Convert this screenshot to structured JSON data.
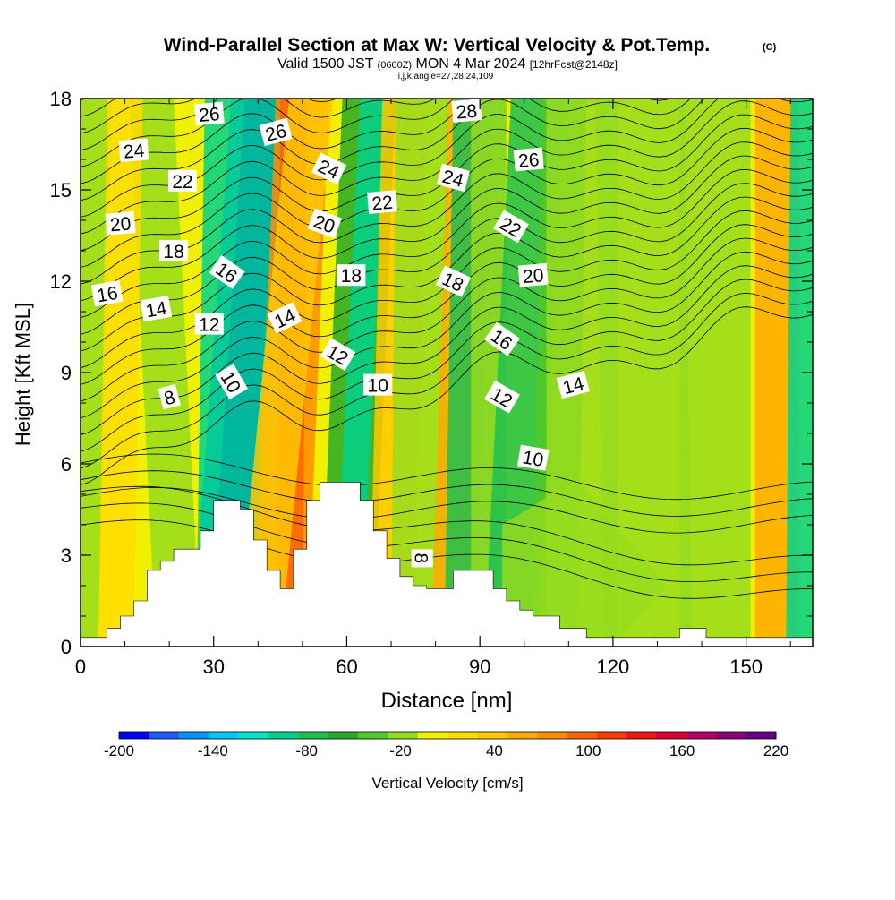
{
  "title": {
    "main": "Wind-Parallel Section at Max W: Vertical Velocity & Pot.Temp.",
    "copyright": "(C)",
    "valid_prefix": "Valid 1500 JST",
    "valid_utc": "(0600Z)",
    "valid_date": "MON 4 Mar 2024",
    "forecast": "[12hrFcst@2148z]",
    "indices": "i,j,k,angle=27,28,24,109"
  },
  "colors": {
    "background": "#ffffff",
    "contour": "#000000",
    "terrain": "#ffffff"
  },
  "chart_data": {
    "type": "heatmap",
    "xlabel": "Distance [nm]",
    "ylabel": "Height [Kft MSL]",
    "xlim": [
      0,
      165
    ],
    "ylim": [
      0,
      18
    ],
    "x_ticks": [
      0,
      30,
      60,
      90,
      120,
      150
    ],
    "y_ticks": [
      0,
      3,
      6,
      9,
      12,
      15,
      18
    ],
    "x_minor_step": 10,
    "colorbar": {
      "label": "Vertical Velocity [cm/s]",
      "min": -200,
      "max": 220,
      "tick_labels": [
        "-200",
        "-140",
        "-80",
        "-20",
        "40",
        "100",
        "160",
        "220"
      ],
      "colors": [
        "#0000ff",
        "#1e5aff",
        "#0096ff",
        "#00c8ff",
        "#00e6cc",
        "#00d28c",
        "#1ec050",
        "#28aa28",
        "#50c828",
        "#96dc1e",
        "#f0f000",
        "#ffdc00",
        "#ffc800",
        "#ffaa00",
        "#ff8c00",
        "#ff6400",
        "#ff3c00",
        "#f01414",
        "#dc0032",
        "#b40064",
        "#8c0078",
        "#64008c"
      ]
    },
    "terrain_profile": {
      "x": [
        0,
        6,
        6,
        9,
        9,
        12,
        12,
        15,
        15,
        18,
        18,
        21,
        21,
        24,
        24,
        27,
        27,
        30,
        30,
        33,
        33,
        36,
        36,
        39,
        39,
        42,
        42,
        45,
        45,
        48,
        48,
        51,
        51,
        54,
        54,
        57,
        57,
        60,
        60,
        63,
        63,
        66,
        66,
        69,
        69,
        72,
        72,
        75,
        75,
        78,
        78,
        81,
        81,
        84,
        84,
        87,
        87,
        90,
        90,
        93,
        93,
        96,
        96,
        99,
        99,
        102,
        102,
        105,
        105,
        108,
        108,
        111,
        111,
        114,
        114,
        117,
        117,
        120,
        120,
        135,
        135,
        141,
        141,
        165
      ],
      "y": [
        0.3,
        0.3,
        0.6,
        0.6,
        1.0,
        1.0,
        1.5,
        1.5,
        2.5,
        2.5,
        2.8,
        2.8,
        3.2,
        3.2,
        3.2,
        3.2,
        3.8,
        3.8,
        4.8,
        4.8,
        4.8,
        4.8,
        4.5,
        4.5,
        3.5,
        3.5,
        2.5,
        2.5,
        1.9,
        1.9,
        3.2,
        3.2,
        4.8,
        4.8,
        5.4,
        5.4,
        5.4,
        5.4,
        5.4,
        5.4,
        4.8,
        4.8,
        3.8,
        3.8,
        2.9,
        2.9,
        2.3,
        2.3,
        2.0,
        2.0,
        1.9,
        1.9,
        1.9,
        1.9,
        2.5,
        2.5,
        2.5,
        2.5,
        2.5,
        2.5,
        1.9,
        1.9,
        1.5,
        1.5,
        1.2,
        1.2,
        1.0,
        1.0,
        1.0,
        1.0,
        0.6,
        0.6,
        0.6,
        0.6,
        0.3,
        0.3,
        0.3,
        0.3,
        0.3,
        0.3,
        0.6,
        0.6,
        0.3,
        0.3
      ]
    },
    "contour_labels": [
      {
        "text": "26",
        "x": 29,
        "y": 17.5,
        "angle": -5
      },
      {
        "text": "24",
        "x": 12,
        "y": 16.3,
        "angle": -5
      },
      {
        "text": "22",
        "x": 23,
        "y": 15.3,
        "angle": 0
      },
      {
        "text": "20",
        "x": 9,
        "y": 13.9,
        "angle": -5
      },
      {
        "text": "18",
        "x": 21,
        "y": 13.0,
        "angle": 0
      },
      {
        "text": "16",
        "x": 6,
        "y": 11.6,
        "angle": -10
      },
      {
        "text": "14",
        "x": 17,
        "y": 11.1,
        "angle": -10
      },
      {
        "text": "12",
        "x": 29,
        "y": 10.6,
        "angle": 0
      },
      {
        "text": "16",
        "x": 33,
        "y": 12.3,
        "angle": 35
      },
      {
        "text": "10",
        "x": 34,
        "y": 8.7,
        "angle": 60
      },
      {
        "text": "8",
        "x": 20,
        "y": 8.2,
        "angle": -15
      },
      {
        "text": "26",
        "x": 44,
        "y": 16.9,
        "angle": -15
      },
      {
        "text": "24",
        "x": 56,
        "y": 15.7,
        "angle": 25
      },
      {
        "text": "20",
        "x": 55,
        "y": 13.9,
        "angle": 20
      },
      {
        "text": "14",
        "x": 46,
        "y": 10.8,
        "angle": -25
      },
      {
        "text": "18",
        "x": 61,
        "y": 12.2,
        "angle": 0
      },
      {
        "text": "12",
        "x": 58,
        "y": 9.6,
        "angle": 30
      },
      {
        "text": "22",
        "x": 68,
        "y": 14.6,
        "angle": -5
      },
      {
        "text": "10",
        "x": 67,
        "y": 8.6,
        "angle": 0
      },
      {
        "text": "24",
        "x": 84,
        "y": 15.4,
        "angle": 15
      },
      {
        "text": "28",
        "x": 87,
        "y": 17.6,
        "angle": -5
      },
      {
        "text": "18",
        "x": 84,
        "y": 12.0,
        "angle": 25
      },
      {
        "text": "26",
        "x": 101,
        "y": 16.0,
        "angle": -5
      },
      {
        "text": "22",
        "x": 97,
        "y": 13.8,
        "angle": 30
      },
      {
        "text": "20",
        "x": 102,
        "y": 12.2,
        "angle": -5
      },
      {
        "text": "16",
        "x": 95,
        "y": 10.1,
        "angle": 35
      },
      {
        "text": "12",
        "x": 95,
        "y": 8.2,
        "angle": 30
      },
      {
        "text": "10",
        "x": 102,
        "y": 6.2,
        "angle": 10
      },
      {
        "text": "14",
        "x": 111,
        "y": 8.6,
        "angle": -15
      },
      {
        "text": "8",
        "x": 77,
        "y": 2.9,
        "angle": 90
      }
    ]
  }
}
